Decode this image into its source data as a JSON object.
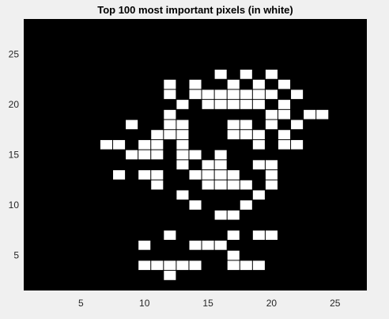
{
  "chart_data": {
    "type": "heatmap",
    "title": "Top 100 most important pixels (in white)",
    "xlabel": "",
    "ylabel": "",
    "xlim": [
      1,
      28
    ],
    "ylim": [
      1,
      28
    ],
    "x_ticks": [
      5,
      10,
      15,
      20,
      25
    ],
    "y_ticks": [
      5,
      10,
      15,
      20,
      25
    ],
    "grid": false,
    "background_color": "#000000",
    "pixel_color": "#ffffff",
    "figure_color": "#f0f0f0",
    "pixels": [
      [
        16,
        23
      ],
      [
        18,
        23
      ],
      [
        20,
        23
      ],
      [
        12,
        22
      ],
      [
        14,
        22
      ],
      [
        17,
        22
      ],
      [
        19,
        22
      ],
      [
        21,
        22
      ],
      [
        12,
        21
      ],
      [
        14,
        21
      ],
      [
        15,
        21
      ],
      [
        16,
        21
      ],
      [
        17,
        21
      ],
      [
        18,
        21
      ],
      [
        19,
        21
      ],
      [
        20,
        21
      ],
      [
        22,
        21
      ],
      [
        13,
        20
      ],
      [
        15,
        20
      ],
      [
        16,
        20
      ],
      [
        17,
        20
      ],
      [
        18,
        20
      ],
      [
        19,
        20
      ],
      [
        21,
        20
      ],
      [
        12,
        19
      ],
      [
        20,
        19
      ],
      [
        21,
        19
      ],
      [
        23,
        19
      ],
      [
        24,
        19
      ],
      [
        9,
        18
      ],
      [
        12,
        18
      ],
      [
        13,
        18
      ],
      [
        17,
        18
      ],
      [
        18,
        18
      ],
      [
        20,
        18
      ],
      [
        22,
        18
      ],
      [
        11,
        17
      ],
      [
        12,
        17
      ],
      [
        13,
        17
      ],
      [
        17,
        17
      ],
      [
        18,
        17
      ],
      [
        19,
        17
      ],
      [
        21,
        17
      ],
      [
        7,
        16
      ],
      [
        8,
        16
      ],
      [
        10,
        16
      ],
      [
        11,
        16
      ],
      [
        13,
        16
      ],
      [
        19,
        16
      ],
      [
        21,
        16
      ],
      [
        22,
        16
      ],
      [
        9,
        15
      ],
      [
        10,
        15
      ],
      [
        11,
        15
      ],
      [
        13,
        15
      ],
      [
        14,
        15
      ],
      [
        16,
        15
      ],
      [
        13,
        14
      ],
      [
        15,
        14
      ],
      [
        16,
        14
      ],
      [
        19,
        14
      ],
      [
        20,
        14
      ],
      [
        8,
        13
      ],
      [
        10,
        13
      ],
      [
        11,
        13
      ],
      [
        14,
        13
      ],
      [
        15,
        13
      ],
      [
        16,
        13
      ],
      [
        17,
        13
      ],
      [
        20,
        13
      ],
      [
        11,
        12
      ],
      [
        15,
        12
      ],
      [
        16,
        12
      ],
      [
        17,
        12
      ],
      [
        18,
        12
      ],
      [
        20,
        12
      ],
      [
        13,
        11
      ],
      [
        19,
        11
      ],
      [
        14,
        10
      ],
      [
        18,
        10
      ],
      [
        16,
        9
      ],
      [
        17,
        9
      ],
      [
        12,
        7
      ],
      [
        17,
        7
      ],
      [
        19,
        7
      ],
      [
        20,
        7
      ],
      [
        10,
        6
      ],
      [
        14,
        6
      ],
      [
        15,
        6
      ],
      [
        16,
        6
      ],
      [
        17,
        5
      ],
      [
        10,
        4
      ],
      [
        11,
        4
      ],
      [
        12,
        4
      ],
      [
        13,
        4
      ],
      [
        14,
        4
      ],
      [
        17,
        4
      ],
      [
        18,
        4
      ],
      [
        19,
        4
      ],
      [
        12,
        3
      ]
    ]
  }
}
